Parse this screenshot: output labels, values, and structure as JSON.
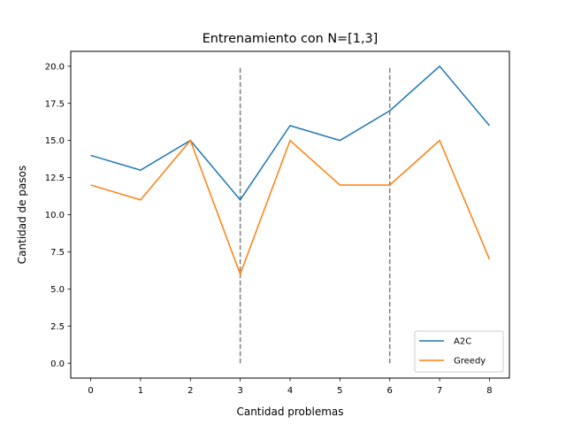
{
  "chart_data": {
    "type": "line",
    "title": "Entrenamiento con N=[1,3]",
    "xlabel": "Cantidad problemas",
    "ylabel": "Cantidad de pasos",
    "x": [
      0,
      1,
      2,
      3,
      4,
      5,
      6,
      7,
      8
    ],
    "xticks": [
      "0",
      "1",
      "2",
      "3",
      "4",
      "5",
      "6",
      "7",
      "8"
    ],
    "yticks": [
      "0.0",
      "2.5",
      "5.0",
      "7.5",
      "10.0",
      "12.5",
      "15.0",
      "17.5",
      "20.0"
    ],
    "xlim": [
      -0.4,
      8.4
    ],
    "ylim": [
      -1,
      21
    ],
    "grid": false,
    "legend_position": "lower-right",
    "series": [
      {
        "name": "A2C",
        "color": "#1f77b4",
        "values": [
          14,
          13,
          15,
          11,
          16,
          15,
          17,
          20,
          16
        ]
      },
      {
        "name": "Greedy",
        "color": "#ff7f0e",
        "values": [
          12,
          11,
          15,
          6,
          15,
          12,
          12,
          15,
          7
        ]
      }
    ],
    "vlines": [
      {
        "x": 3,
        "ymin": 0,
        "ymax": 20,
        "color": "#7f7f7f",
        "style": "dashed"
      },
      {
        "x": 6,
        "ymin": 0,
        "ymax": 20,
        "color": "#7f7f7f",
        "style": "dashed"
      }
    ]
  }
}
